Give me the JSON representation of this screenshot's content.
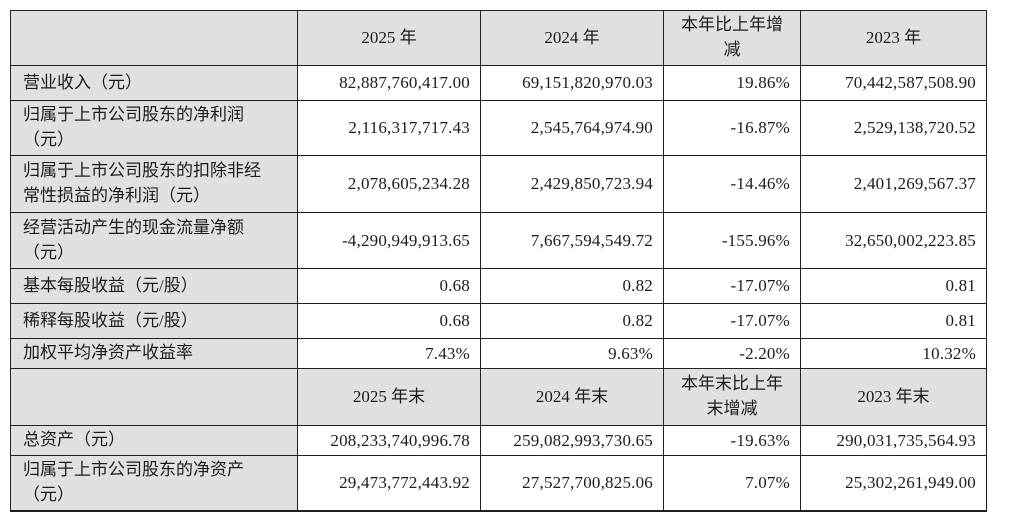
{
  "colors": {
    "page_bg": "#ffffff",
    "header_bg": "#e0e0e0",
    "label_column_bg": "#e0e0e0",
    "data_cell_bg": "#ffffff",
    "border": "#1f1f1f",
    "text": "#1c1c1c"
  },
  "table": {
    "sections": [
      {
        "header": {
          "corner": "",
          "cols": [
            "2025 年",
            "2024 年",
            "本年比上年增减",
            "2023 年"
          ]
        },
        "rows": [
          {
            "label": "营业收入（元）",
            "values": [
              "82,887,760,417.00",
              "69,151,820,970.03",
              "19.86%",
              "70,442,587,508.90"
            ]
          },
          {
            "label": "归属于上市公司股东的净利润（元）",
            "values": [
              "2,116,317,717.43",
              "2,545,764,974.90",
              "-16.87%",
              "2,529,138,720.52"
            ]
          },
          {
            "label": "归属于上市公司股东的扣除非经常性损益的净利润（元）",
            "values": [
              "2,078,605,234.28",
              "2,429,850,723.94",
              "-14.46%",
              "2,401,269,567.37"
            ]
          },
          {
            "label": "经营活动产生的现金流量净额（元）",
            "values": [
              "-4,290,949,913.65",
              "7,667,594,549.72",
              "-155.96%",
              "32,650,002,223.85"
            ]
          },
          {
            "label": "基本每股收益（元/股）",
            "values": [
              "0.68",
              "0.82",
              "-17.07%",
              "0.81"
            ]
          },
          {
            "label": "稀释每股收益（元/股）",
            "values": [
              "0.68",
              "0.82",
              "-17.07%",
              "0.81"
            ]
          },
          {
            "label": "加权平均净资产收益率",
            "values": [
              "7.43%",
              "9.63%",
              "-2.20%",
              "10.32%"
            ]
          }
        ]
      },
      {
        "header": {
          "corner": "",
          "cols": [
            "2025 年末",
            "2024 年末",
            "本年末比上年末增减",
            "2023 年末"
          ]
        },
        "rows": [
          {
            "label": "总资产（元）",
            "values": [
              "208,233,740,996.78",
              "259,082,993,730.65",
              "-19.63%",
              "290,031,735,564.93"
            ]
          },
          {
            "label": "归属于上市公司股东的净资产（元）",
            "values": [
              "29,473,772,443.92",
              "27,527,700,825.06",
              "7.07%",
              "25,302,261,949.00"
            ]
          }
        ]
      }
    ]
  }
}
